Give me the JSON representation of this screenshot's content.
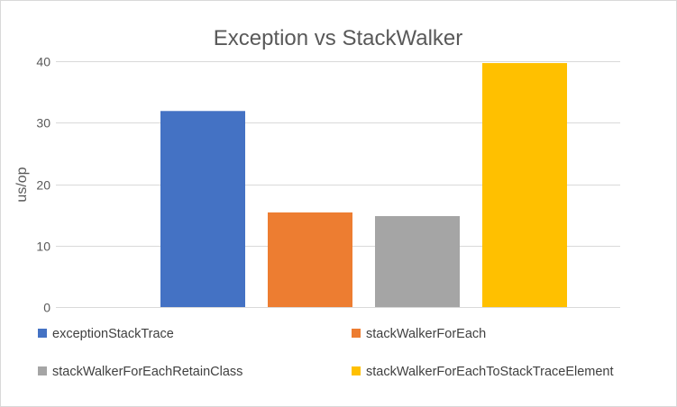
{
  "chart_data": {
    "type": "bar",
    "title": "Exception vs StackWalker",
    "xlabel": "",
    "ylabel": "us/op",
    "ylim": [
      0,
      40
    ],
    "yticks": [
      0,
      10,
      20,
      30,
      40
    ],
    "grid": true,
    "legend_position": "bottom",
    "categories": [
      ""
    ],
    "series": [
      {
        "name": "exceptionStackTrace",
        "values": [
          31.9
        ],
        "color": "#4472c4"
      },
      {
        "name": "stackWalkerForEach",
        "values": [
          15.4
        ],
        "color": "#ed7d31"
      },
      {
        "name": "stackWalkerForEachRetainClass",
        "values": [
          14.8
        ],
        "color": "#a5a5a5"
      },
      {
        "name": "stackWalkerForEachToStackTraceElement",
        "values": [
          39.7
        ],
        "color": "#ffc000"
      }
    ]
  }
}
